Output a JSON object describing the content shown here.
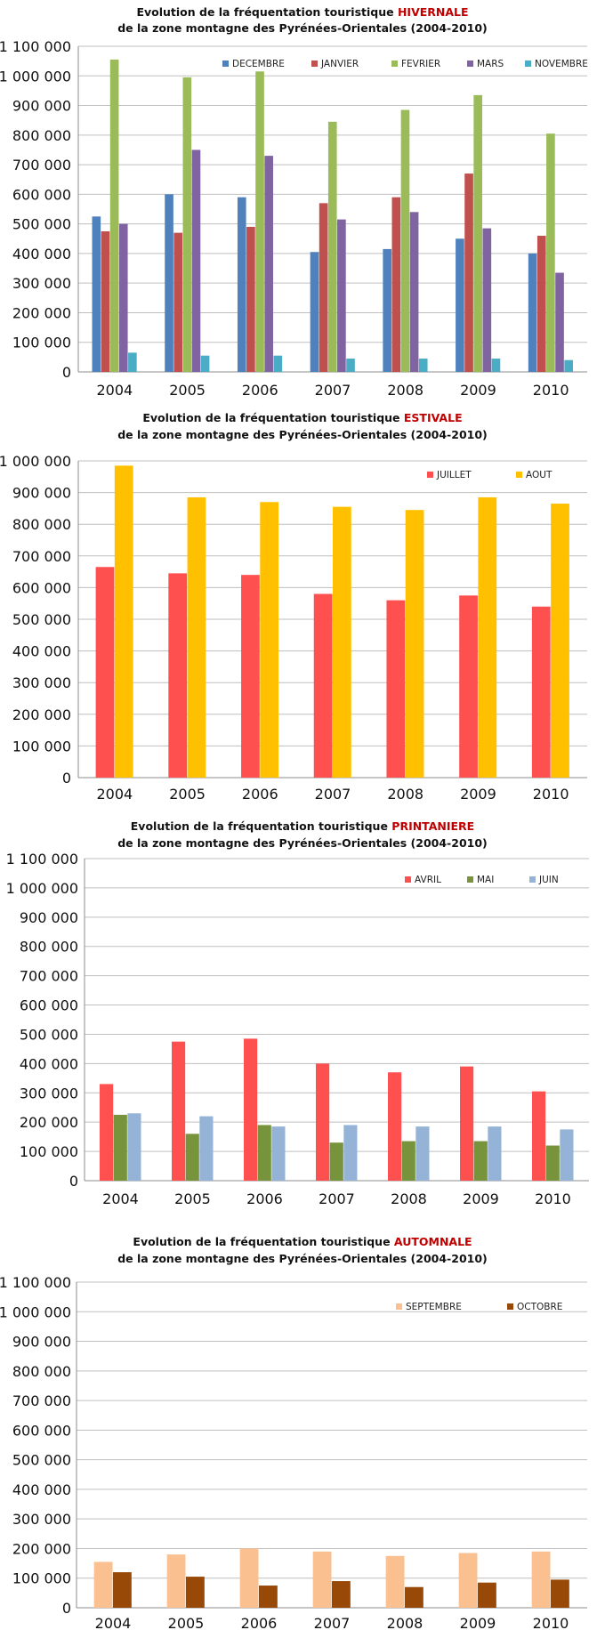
{
  "colors": {
    "accent_title": "#c00000",
    "DECEMBRE": "#4f81bd",
    "JANVIER": "#c0504d",
    "FEVRIER": "#9bbb59",
    "MARS": "#8064a2",
    "NOVEMBRE": "#4bacc6",
    "JUILLET": "#ff5050",
    "AOUT": "#ffc000",
    "AVRIL": "#ff5050",
    "MAI": "#77933c",
    "JUIN": "#95b3d7",
    "SEPTEMBRE": "#fac090",
    "OCTOBRE": "#984807"
  },
  "chart_data": [
    {
      "type": "bar",
      "title_prefix": "Evolution de la fréquentation touristique ",
      "title_highlight": "HIVERNALE",
      "subtitle": "de la zone montagne des Pyrénées-Orientales (2004-2010)",
      "categories": [
        "2004",
        "2005",
        "2006",
        "2007",
        "2008",
        "2009",
        "2010"
      ],
      "yticks": [
        "0",
        "100 000",
        "200 000",
        "300 000",
        "400 000",
        "500 000",
        "600 000",
        "700 000",
        "800 000",
        "900 000",
        "1 000 000",
        "1 100 000"
      ],
      "ylim": [
        0,
        1100000
      ],
      "grid": true,
      "legend_position": "top-right",
      "series": [
        {
          "name": "DECEMBRE",
          "values": [
            525000,
            600000,
            590000,
            405000,
            415000,
            450000,
            400000
          ]
        },
        {
          "name": "JANVIER",
          "values": [
            475000,
            470000,
            490000,
            570000,
            590000,
            670000,
            460000
          ]
        },
        {
          "name": "FEVRIER",
          "values": [
            1055000,
            995000,
            1015000,
            845000,
            885000,
            935000,
            805000
          ]
        },
        {
          "name": "MARS",
          "values": [
            500000,
            750000,
            730000,
            515000,
            540000,
            485000,
            335000
          ]
        },
        {
          "name": "NOVEMBRE",
          "values": [
            65000,
            55000,
            55000,
            45000,
            45000,
            45000,
            40000
          ]
        }
      ]
    },
    {
      "type": "bar",
      "title_prefix": "Evolution de la fréquentation touristique ",
      "title_highlight": "ESTIVALE",
      "subtitle": "de la zone montagne des Pyrénées-Orientales (2004-2010)",
      "categories": [
        "2004",
        "2005",
        "2006",
        "2007",
        "2008",
        "2009",
        "2010"
      ],
      "yticks": [
        "0",
        "100 000",
        "200 000",
        "300 000",
        "400 000",
        "500 000",
        "600 000",
        "700 000",
        "800 000",
        "900 000",
        "1 000 000"
      ],
      "ylim": [
        0,
        1000000
      ],
      "grid": true,
      "legend_position": "top-right",
      "series": [
        {
          "name": "JUILLET",
          "values": [
            665000,
            645000,
            640000,
            580000,
            560000,
            575000,
            540000
          ]
        },
        {
          "name": "AOUT",
          "values": [
            985000,
            885000,
            870000,
            855000,
            845000,
            885000,
            865000
          ]
        }
      ]
    },
    {
      "type": "bar",
      "title_prefix": "Evolution de la fréquentation touristique ",
      "title_highlight": "PRINTANIERE",
      "subtitle": "de la zone montagne des Pyrénées-Orientales (2004-2010)",
      "categories": [
        "2004",
        "2005",
        "2006",
        "2007",
        "2008",
        "2009",
        "2010"
      ],
      "yticks": [
        "0",
        "100 000",
        "200 000",
        "300 000",
        "400 000",
        "500 000",
        "600 000",
        "700 000",
        "800 000",
        "900 000",
        "1 000 000",
        "1 100 000"
      ],
      "ylim": [
        0,
        1100000
      ],
      "grid": true,
      "legend_position": "top-right",
      "series": [
        {
          "name": "AVRIL",
          "values": [
            330000,
            475000,
            485000,
            400000,
            370000,
            390000,
            305000
          ]
        },
        {
          "name": "MAI",
          "values": [
            225000,
            160000,
            190000,
            130000,
            135000,
            135000,
            120000
          ]
        },
        {
          "name": "JUIN",
          "values": [
            230000,
            220000,
            185000,
            190000,
            185000,
            185000,
            175000
          ]
        }
      ]
    },
    {
      "type": "bar",
      "title_prefix": "Evolution de la fréquentation touristique ",
      "title_highlight": "AUTOMNALE",
      "subtitle": "de la zone montagne des Pyrénées-Orientales (2004-2010)",
      "categories": [
        "2004",
        "2005",
        "2006",
        "2007",
        "2008",
        "2009",
        "2010"
      ],
      "yticks": [
        "0",
        "100 000",
        "200 000",
        "300 000",
        "400 000",
        "500 000",
        "600 000",
        "700 000",
        "800 000",
        "900 000",
        "1 000 000",
        "1 100 000"
      ],
      "ylim": [
        0,
        1100000
      ],
      "grid": true,
      "legend_position": "top-right",
      "series": [
        {
          "name": "SEPTEMBRE",
          "values": [
            155000,
            180000,
            200000,
            190000,
            175000,
            185000,
            190000
          ]
        },
        {
          "name": "OCTOBRE",
          "values": [
            120000,
            105000,
            75000,
            90000,
            70000,
            85000,
            95000
          ]
        }
      ]
    }
  ]
}
